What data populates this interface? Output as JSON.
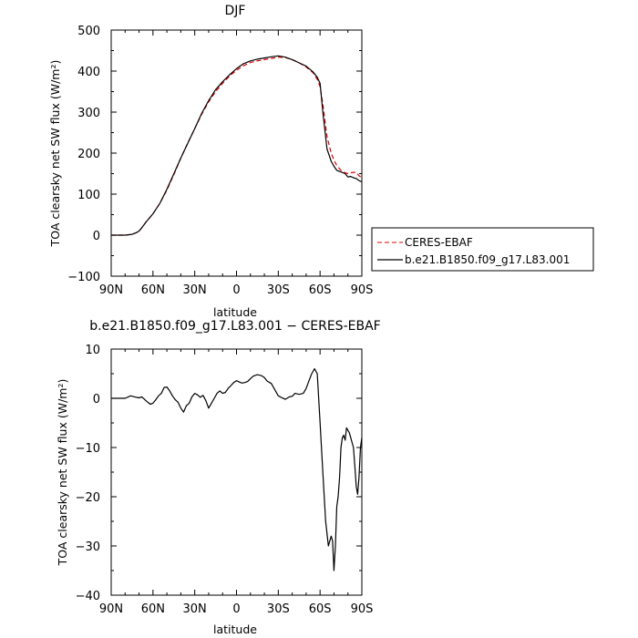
{
  "chart_data": [
    {
      "type": "line",
      "title": "DJF",
      "xlabel": "latitude",
      "ylabel": "TOA clearsky net SW flux (W/m²)",
      "xlim": [
        90,
        -90
      ],
      "ylim": [
        -100,
        500
      ],
      "x_ticks": [
        90,
        60,
        30,
        0,
        -30,
        -60,
        -90
      ],
      "x_tick_labels": [
        "90N",
        "60N",
        "30N",
        "0",
        "30S",
        "60S",
        "90S"
      ],
      "y_ticks": [
        -100,
        0,
        100,
        200,
        300,
        400,
        500
      ],
      "y_tick_labels": [
        "−100",
        "0",
        "100",
        "200",
        "300",
        "400",
        "500"
      ],
      "legend": {
        "placement": "right",
        "entries": [
          "CERES-EBAF",
          "b.e21.B1850.f09_g17.L83.001"
        ]
      },
      "series": [
        {
          "name": "CERES-EBAF",
          "color": "#dd0000",
          "dash": "dashed",
          "x": [
            90,
            85,
            80,
            75,
            72,
            70,
            68,
            65,
            60,
            55,
            50,
            45,
            40,
            35,
            30,
            25,
            20,
            15,
            10,
            5,
            0,
            -5,
            -10,
            -15,
            -20,
            -25,
            -30,
            -35,
            -40,
            -45,
            -50,
            -55,
            -58,
            -60,
            -62,
            -65,
            -68,
            -70,
            -72,
            -75,
            -78,
            -80,
            -82,
            -84,
            -86,
            -88,
            -90
          ],
          "y": [
            0,
            0,
            0,
            2,
            6,
            10,
            18,
            32,
            52,
            78,
            110,
            148,
            188,
            225,
            260,
            295,
            325,
            350,
            370,
            388,
            402,
            413,
            421,
            425,
            428,
            431,
            434,
            433,
            428,
            420,
            410,
            396,
            380,
            362,
            320,
            240,
            200,
            183,
            170,
            158,
            152,
            150,
            152,
            153,
            153,
            145,
            140
          ]
        },
        {
          "name": "b.e21.B1850.f09_g17.L83.001",
          "color": "#000000",
          "dash": "solid",
          "x": [
            90,
            85,
            80,
            75,
            72,
            70,
            68,
            65,
            60,
            55,
            50,
            45,
            40,
            35,
            30,
            25,
            20,
            15,
            10,
            5,
            0,
            -5,
            -10,
            -15,
            -20,
            -25,
            -30,
            -35,
            -40,
            -45,
            -50,
            -55,
            -58,
            -60,
            -62,
            -65,
            -68,
            -70,
            -72,
            -75,
            -78,
            -80,
            -82,
            -84,
            -86,
            -88,
            -90
          ],
          "y": [
            0,
            0,
            0,
            2,
            6,
            10,
            18,
            32,
            52,
            78,
            112,
            150,
            188,
            224,
            260,
            297,
            328,
            355,
            374,
            391,
            406,
            418,
            425,
            429,
            432,
            435,
            437,
            434,
            428,
            420,
            412,
            398,
            385,
            370,
            300,
            210,
            180,
            168,
            158,
            154,
            150,
            142,
            143,
            140,
            138,
            133,
            130
          ]
        }
      ]
    },
    {
      "type": "line",
      "title": "b.e21.B1850.f09_g17.L83.001 − CERES-EBAF",
      "xlabel": "latitude",
      "ylabel": "TOA clearsky net SW flux (W/m²)",
      "xlim": [
        90,
        -90
      ],
      "ylim": [
        -40,
        10
      ],
      "x_ticks": [
        90,
        60,
        30,
        0,
        -30,
        -60,
        -90
      ],
      "x_tick_labels": [
        "90N",
        "60N",
        "30N",
        "0",
        "30S",
        "60S",
        "90S"
      ],
      "y_ticks": [
        -40,
        -30,
        -20,
        -10,
        0,
        10
      ],
      "y_tick_labels": [
        "−40",
        "−30",
        "−20",
        "−10",
        "0",
        "10"
      ],
      "series": [
        {
          "color": "#000000",
          "dash": "solid",
          "x": [
            90,
            80,
            76,
            72,
            70,
            68,
            65,
            62,
            60,
            58,
            56,
            54,
            52,
            50,
            48,
            46,
            44,
            42,
            40,
            38,
            36,
            34,
            32,
            30,
            28,
            26,
            24,
            22,
            20,
            18,
            16,
            14,
            12,
            10,
            8,
            6,
            4,
            2,
            0,
            -2,
            -4,
            -6,
            -8,
            -10,
            -12,
            -15,
            -18,
            -20,
            -22,
            -25,
            -28,
            -30,
            -32,
            -35,
            -38,
            -40,
            -42,
            -45,
            -48,
            -50,
            -52,
            -54,
            -56,
            -58,
            -60,
            -62,
            -64,
            -66,
            -68,
            -69,
            -70,
            -71,
            -72,
            -73,
            -74,
            -75,
            -76,
            -77,
            -78,
            -79,
            -80,
            -81,
            -82,
            -83,
            -84,
            -85,
            -86,
            -87,
            -88,
            -89,
            -90
          ],
          "y": [
            0,
            0,
            0.5,
            0.2,
            0.1,
            0.3,
            -0.5,
            -1.2,
            -1.0,
            -0.3,
            0.5,
            1.0,
            2.2,
            2.3,
            1.5,
            0.5,
            -0.3,
            -0.8,
            -2.0,
            -2.8,
            -1.5,
            -1.0,
            0.3,
            1.0,
            0.7,
            0.2,
            0.6,
            -0.5,
            -2.0,
            -1.0,
            0.0,
            1.0,
            1.5,
            1.0,
            1.2,
            2.0,
            2.6,
            3.2,
            3.6,
            3.3,
            3.1,
            3.2,
            3.4,
            4.0,
            4.5,
            4.8,
            4.6,
            4.2,
            3.5,
            3.0,
            1.5,
            0.5,
            0.2,
            -0.2,
            0.3,
            0.4,
            1.0,
            0.8,
            1.0,
            2.0,
            3.5,
            5.0,
            6.0,
            5.0,
            -5.0,
            -15.0,
            -25.0,
            -30.0,
            -28.0,
            -29.0,
            -35.0,
            -30.0,
            -22.0,
            -20.0,
            -16.0,
            -10.0,
            -8.0,
            -7.5,
            -8.5,
            -6.0,
            -6.5,
            -7.0,
            -8.0,
            -9.0,
            -10.0,
            -14.0,
            -18.0,
            -19.5,
            -16.0,
            -10.0,
            -8.0
          ]
        }
      ]
    }
  ]
}
